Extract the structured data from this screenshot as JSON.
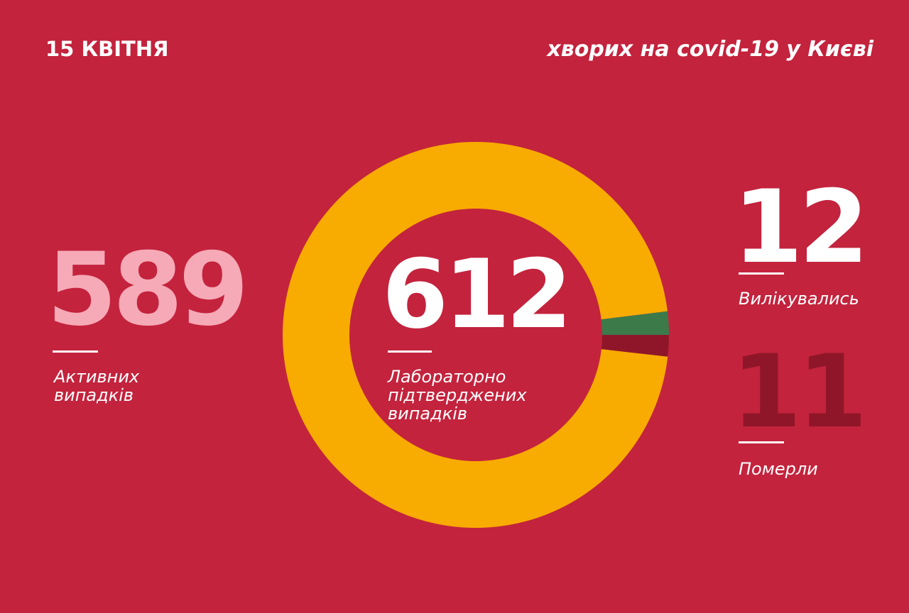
{
  "header": {
    "date": "15 КВІТНЯ",
    "title": "хворих на covid-19 у Києві"
  },
  "stats": {
    "active": {
      "value": "589",
      "label_line1": "Активних",
      "label_line2": "випадків"
    },
    "confirmed": {
      "value": "612",
      "label_line1": "Лабораторно",
      "label_line2": "підтверджених",
      "label_line3": "випадків"
    },
    "recovered": {
      "value": "12",
      "label": "Вилікувались"
    },
    "deaths": {
      "value": "11",
      "label": "Померли"
    }
  },
  "chart_data": {
    "type": "pie",
    "variant": "donut",
    "total": 612,
    "slices": [
      {
        "label": "Активних випадків",
        "value": 589,
        "color": "#f8ab00"
      },
      {
        "label": "Вилікувались",
        "value": 12,
        "color": "#3d7a4a"
      },
      {
        "label": "Померли",
        "value": 11,
        "color": "#8f1628"
      }
    ],
    "start_angle_deg": 90,
    "direction": "counterclockwise"
  },
  "colors": {
    "background": "#c3233d",
    "active_text": "#f6a9b6",
    "deaths_text": "#8f1628"
  }
}
